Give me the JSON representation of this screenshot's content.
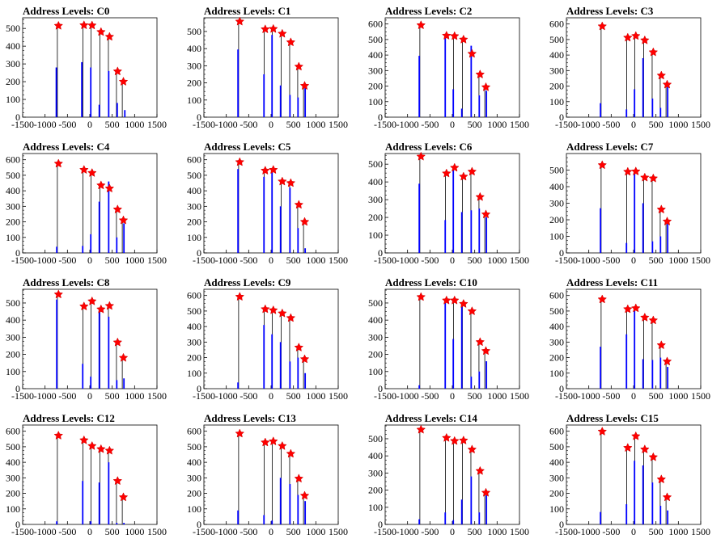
{
  "chart_data": [
    {
      "type": "bar",
      "title": "Address Levels: C0",
      "xlim": [
        -1500,
        1500
      ],
      "xticks": [
        -1500,
        -1000,
        -500,
        0,
        500,
        1000,
        1500
      ],
      "ylim": [
        0,
        560
      ],
      "yticks": [
        0,
        100,
        200,
        300,
        400,
        500
      ],
      "series": [
        {
          "name": "",
          "color": "#0000ff",
          "x": [
            -750,
            -180,
            20,
            210,
            420,
            610,
            780
          ],
          "values": [
            280,
            310,
            280,
            70,
            260,
            80,
            40
          ]
        }
      ],
      "peaks": {
        "color": "#ff0000",
        "x": [
          -700,
          -130,
          50,
          250,
          440,
          620,
          750
        ],
        "values": [
          515,
          518,
          517,
          480,
          453,
          258,
          200
        ]
      }
    },
    {
      "type": "bar",
      "title": "Address Levels: C1",
      "xlim": [
        -1500,
        1500
      ],
      "xticks": [
        -1500,
        -1000,
        -500,
        0,
        500,
        1000,
        1500
      ],
      "ylim": [
        0,
        580
      ],
      "yticks": [
        0,
        100,
        200,
        300,
        400,
        500
      ],
      "series": [
        {
          "name": "",
          "color": "#0000ff",
          "x": [
            -740,
            -160,
            20,
            210,
            420,
            600,
            760
          ],
          "values": [
            395,
            250,
            480,
            185,
            130,
            115,
            170
          ]
        }
      ],
      "peaks": {
        "color": "#ff0000",
        "x": [
          -700,
          -130,
          50,
          250,
          440,
          620,
          750
        ],
        "values": [
          558,
          513,
          515,
          487,
          437,
          295,
          183
        ]
      }
    },
    {
      "type": "bar",
      "title": "Address Levels: C2",
      "xlim": [
        -1500,
        1500
      ],
      "xticks": [
        -1500,
        -1000,
        -500,
        0,
        500,
        1000,
        1500
      ],
      "ylim": [
        0,
        640
      ],
      "yticks": [
        0,
        100,
        200,
        300,
        400,
        500,
        600
      ],
      "series": [
        {
          "name": "",
          "color": "#0000ff",
          "x": [
            -740,
            -160,
            20,
            210,
            420,
            600,
            760
          ],
          "values": [
            395,
            530,
            180,
            55,
            460,
            140,
            170
          ]
        }
      ],
      "peaks": {
        "color": "#ff0000",
        "x": [
          -700,
          -130,
          50,
          250,
          440,
          620,
          750
        ],
        "values": [
          592,
          525,
          522,
          500,
          408,
          275,
          193
        ]
      }
    },
    {
      "type": "bar",
      "title": "Address Levels: C3",
      "xlim": [
        -1500,
        1500
      ],
      "xticks": [
        -1500,
        -1000,
        -500,
        0,
        500,
        1000,
        1500
      ],
      "ylim": [
        0,
        640
      ],
      "yticks": [
        0,
        100,
        200,
        300,
        400,
        500,
        600
      ],
      "series": [
        {
          "name": "",
          "color": "#0000ff",
          "x": [
            -740,
            -160,
            20,
            210,
            420,
            600,
            760
          ],
          "values": [
            90,
            50,
            180,
            380,
            120,
            60,
            200
          ]
        }
      ],
      "peaks": {
        "color": "#ff0000",
        "x": [
          -700,
          -130,
          50,
          250,
          440,
          620,
          750
        ],
        "values": [
          585,
          512,
          523,
          495,
          418,
          268,
          210
        ]
      }
    },
    {
      "type": "bar",
      "title": "Address Levels: C4",
      "xlim": [
        -1500,
        1500
      ],
      "xticks": [
        -1500,
        -1000,
        -500,
        0,
        500,
        1000,
        1500
      ],
      "ylim": [
        0,
        640
      ],
      "yticks": [
        0,
        100,
        200,
        300,
        400,
        500,
        600
      ],
      "series": [
        {
          "name": "",
          "color": "#0000ff",
          "x": [
            -740,
            -160,
            20,
            210,
            420,
            600,
            760
          ],
          "values": [
            40,
            45,
            120,
            330,
            460,
            100,
            190
          ]
        }
      ],
      "peaks": {
        "color": "#ff0000",
        "x": [
          -700,
          -130,
          50,
          250,
          440,
          620,
          750
        ],
        "values": [
          575,
          535,
          515,
          435,
          415,
          280,
          210
        ]
      }
    },
    {
      "type": "bar",
      "title": "Address Levels: C5",
      "xlim": [
        -1500,
        1500
      ],
      "xticks": [
        -1500,
        -1000,
        -500,
        0,
        500,
        1000,
        1500
      ],
      "ylim": [
        0,
        640
      ],
      "yticks": [
        0,
        100,
        200,
        300,
        400,
        500,
        600
      ],
      "series": [
        {
          "name": "",
          "color": "#0000ff",
          "x": [
            -740,
            -160,
            20,
            210,
            420,
            600,
            760
          ],
          "values": [
            540,
            490,
            525,
            300,
            420,
            160,
            30
          ]
        }
      ],
      "peaks": {
        "color": "#ff0000",
        "x": [
          -700,
          -130,
          50,
          250,
          440,
          620,
          750
        ],
        "values": [
          585,
          530,
          535,
          460,
          450,
          310,
          200
        ]
      }
    },
    {
      "type": "bar",
      "title": "Address Levels: C6",
      "xlim": [
        -1500,
        1500
      ],
      "xticks": [
        -1500,
        -1000,
        -500,
        0,
        500,
        1000,
        1500
      ],
      "ylim": [
        0,
        560
      ],
      "yticks": [
        0,
        100,
        200,
        300,
        400,
        500
      ],
      "series": [
        {
          "name": "",
          "color": "#0000ff",
          "x": [
            -740,
            -160,
            20,
            210,
            420,
            600,
            760
          ],
          "values": [
            390,
            185,
            470,
            230,
            240,
            250,
            200
          ]
        }
      ],
      "peaks": {
        "color": "#ff0000",
        "x": [
          -700,
          -130,
          50,
          250,
          440,
          620,
          750
        ],
        "values": [
          543,
          448,
          480,
          430,
          458,
          315,
          217
        ]
      }
    },
    {
      "type": "bar",
      "title": "Address Levels: C7",
      "xlim": [
        -1500,
        1500
      ],
      "xticks": [
        -1500,
        -1000,
        -500,
        0,
        500,
        1000,
        1500
      ],
      "ylim": [
        0,
        600
      ],
      "yticks": [
        0,
        100,
        200,
        300,
        400,
        500
      ],
      "series": [
        {
          "name": "",
          "color": "#0000ff",
          "x": [
            -740,
            -160,
            20,
            210,
            420,
            600,
            760
          ],
          "values": [
            270,
            60,
            480,
            300,
            70,
            100,
            180
          ]
        }
      ],
      "peaks": {
        "color": "#ff0000",
        "x": [
          -700,
          -130,
          50,
          250,
          440,
          620,
          750
        ],
        "values": [
          530,
          490,
          492,
          455,
          450,
          262,
          190
        ]
      }
    },
    {
      "type": "bar",
      "title": "Address Levels: C8",
      "xlim": [
        -1500,
        1500
      ],
      "xticks": [
        -1500,
        -1000,
        -500,
        0,
        500,
        1000,
        1500
      ],
      "ylim": [
        0,
        580
      ],
      "yticks": [
        0,
        100,
        200,
        300,
        400,
        500
      ],
      "series": [
        {
          "name": "",
          "color": "#0000ff",
          "x": [
            -740,
            -160,
            20,
            210,
            420,
            600,
            760
          ],
          "values": [
            520,
            145,
            70,
            455,
            420,
            50,
            60
          ]
        }
      ],
      "peaks": {
        "color": "#ff0000",
        "x": [
          -700,
          -130,
          50,
          250,
          440,
          620,
          750
        ],
        "values": [
          550,
          480,
          510,
          463,
          483,
          270,
          180
        ]
      }
    },
    {
      "type": "bar",
      "title": "Address Levels: C9",
      "xlim": [
        -1500,
        1500
      ],
      "xticks": [
        -1500,
        -1000,
        -500,
        0,
        500,
        1000,
        1500
      ],
      "ylim": [
        0,
        640
      ],
      "yticks": [
        0,
        100,
        200,
        300,
        400,
        500,
        600
      ],
      "series": [
        {
          "name": "",
          "color": "#0000ff",
          "x": [
            -740,
            -160,
            20,
            210,
            420,
            600,
            760
          ],
          "values": [
            40,
            410,
            350,
            300,
            175,
            200,
            100
          ]
        }
      ],
      "peaks": {
        "color": "#ff0000",
        "x": [
          -700,
          -130,
          50,
          250,
          440,
          620,
          750
        ],
        "values": [
          592,
          512,
          505,
          485,
          455,
          265,
          190
        ]
      }
    },
    {
      "type": "bar",
      "title": "Address Levels: C10",
      "xlim": [
        -1500,
        1500
      ],
      "xticks": [
        -1500,
        -1000,
        -500,
        0,
        500,
        1000,
        1500
      ],
      "ylim": [
        0,
        580
      ],
      "yticks": [
        0,
        100,
        200,
        300,
        400,
        500
      ],
      "series": [
        {
          "name": "",
          "color": "#0000ff",
          "x": [
            -740,
            -160,
            20,
            210,
            420,
            600,
            760
          ],
          "values": [
            20,
            520,
            290,
            500,
            70,
            100,
            160
          ]
        }
      ],
      "peaks": {
        "color": "#ff0000",
        "x": [
          -700,
          -130,
          50,
          250,
          440,
          620,
          750
        ],
        "values": [
          535,
          515,
          515,
          495,
          452,
          272,
          220
        ]
      }
    },
    {
      "type": "bar",
      "title": "Address Levels: C11",
      "xlim": [
        -1500,
        1500
      ],
      "xticks": [
        -1500,
        -1000,
        -500,
        0,
        500,
        1000,
        1500
      ],
      "ylim": [
        0,
        640
      ],
      "yticks": [
        0,
        100,
        200,
        300,
        400,
        500,
        600
      ],
      "series": [
        {
          "name": "",
          "color": "#0000ff",
          "x": [
            -740,
            -160,
            20,
            210,
            420,
            600,
            760
          ],
          "values": [
            270,
            350,
            500,
            190,
            185,
            200,
            140
          ]
        }
      ],
      "peaks": {
        "color": "#ff0000",
        "x": [
          -700,
          -130,
          50,
          250,
          440,
          620,
          750
        ],
        "values": [
          575,
          512,
          518,
          458,
          440,
          280,
          175
        ]
      }
    },
    {
      "type": "bar",
      "title": "Address Levels: C12",
      "xlim": [
        -1500,
        1500
      ],
      "xticks": [
        -1500,
        -1000,
        -500,
        0,
        500,
        1000,
        1500
      ],
      "ylim": [
        0,
        640
      ],
      "yticks": [
        0,
        100,
        200,
        300,
        400,
        500,
        600
      ],
      "series": [
        {
          "name": "",
          "color": "#0000ff",
          "x": [
            -740,
            -160,
            20,
            210,
            420,
            600,
            760
          ],
          "values": [
            20,
            280,
            20,
            270,
            400,
            10,
            10
          ]
        }
      ],
      "peaks": {
        "color": "#ff0000",
        "x": [
          -700,
          -130,
          50,
          250,
          440,
          620,
          750
        ],
        "values": [
          572,
          542,
          505,
          485,
          475,
          280,
          175
        ]
      }
    },
    {
      "type": "bar",
      "title": "Address Levels: C13",
      "xlim": [
        -1500,
        1500
      ],
      "xticks": [
        -1500,
        -1000,
        -500,
        0,
        500,
        1000,
        1500
      ],
      "ylim": [
        0,
        640
      ],
      "yticks": [
        0,
        100,
        200,
        300,
        400,
        500,
        600
      ],
      "series": [
        {
          "name": "",
          "color": "#0000ff",
          "x": [
            -740,
            -160,
            20,
            210,
            420,
            600,
            760
          ],
          "values": [
            90,
            60,
            25,
            300,
            260,
            190,
            150
          ]
        }
      ],
      "peaks": {
        "color": "#ff0000",
        "x": [
          -700,
          -130,
          50,
          250,
          440,
          620,
          750
        ],
        "values": [
          585,
          528,
          535,
          505,
          455,
          295,
          185
        ]
      }
    },
    {
      "type": "bar",
      "title": "Address Levels: C14",
      "xlim": [
        -1500,
        1500
      ],
      "xticks": [
        -1500,
        -1000,
        -500,
        0,
        500,
        1000,
        1500
      ],
      "ylim": [
        0,
        580
      ],
      "yticks": [
        0,
        100,
        200,
        300,
        400,
        500
      ],
      "series": [
        {
          "name": "",
          "color": "#0000ff",
          "x": [
            -740,
            -160,
            20,
            210,
            420,
            600,
            760
          ],
          "values": [
            30,
            70,
            25,
            145,
            280,
            70,
            170
          ]
        }
      ],
      "peaks": {
        "color": "#ff0000",
        "x": [
          -700,
          -130,
          50,
          250,
          440,
          620,
          750
        ],
        "values": [
          553,
          505,
          487,
          490,
          437,
          312,
          185
        ]
      }
    },
    {
      "type": "bar",
      "title": "Address Levels: C15",
      "xlim": [
        -1500,
        1500
      ],
      "xticks": [
        -1500,
        -1000,
        -500,
        0,
        500,
        1000,
        1500
      ],
      "ylim": [
        0,
        640
      ],
      "yticks": [
        0,
        100,
        200,
        300,
        400,
        500,
        600
      ],
      "series": [
        {
          "name": "",
          "color": "#0000ff",
          "x": [
            -740,
            -160,
            20,
            210,
            420,
            600,
            760
          ],
          "values": [
            80,
            130,
            410,
            380,
            270,
            120,
            90
          ]
        }
      ],
      "peaks": {
        "color": "#ff0000",
        "x": [
          -700,
          -130,
          50,
          250,
          440,
          620,
          750
        ],
        "values": [
          598,
          493,
          568,
          483,
          433,
          290,
          175
        ]
      }
    }
  ]
}
